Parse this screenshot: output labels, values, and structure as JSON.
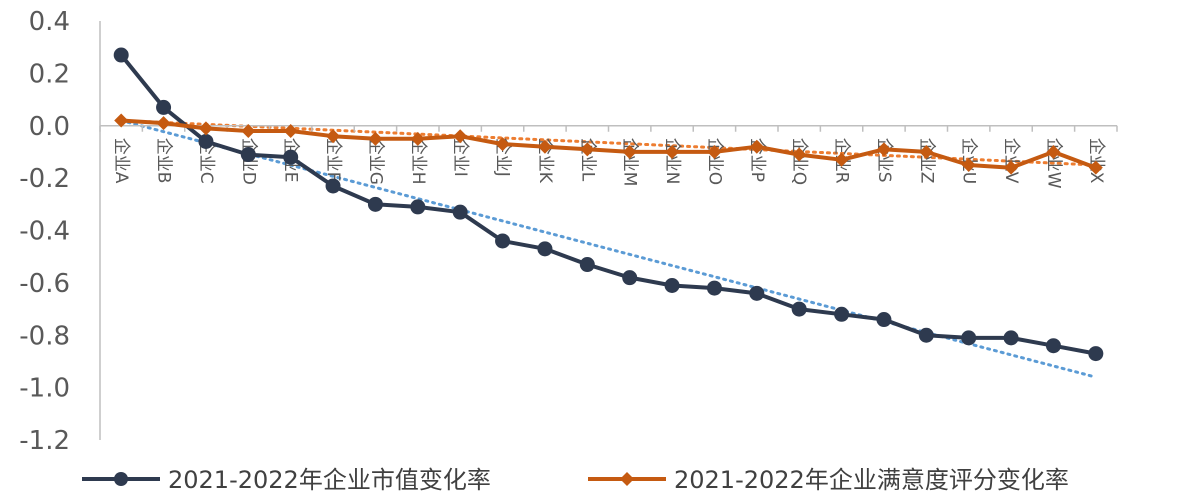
{
  "chart_data": {
    "type": "line",
    "categories": [
      "企业A",
      "企业B",
      "企业C",
      "企业D",
      "企业E",
      "企业F",
      "企业G",
      "企业H",
      "企业I",
      "企业J",
      "企业K",
      "企业L",
      "企业M",
      "企业N",
      "企业O",
      "企业P",
      "企业Q",
      "企业R",
      "企业S",
      "企业Z",
      "企业U",
      "企业V",
      "企业W",
      "企业X"
    ],
    "ylim": [
      -1.2,
      0.4
    ],
    "yticks": [
      0.4,
      0.2,
      0.0,
      -0.2,
      -0.4,
      -0.6,
      -0.8,
      -1.0,
      -1.2
    ],
    "ytick_labels": [
      "0.4",
      "0.2",
      "0.0",
      "-0.2",
      "-0.4",
      "-0.6",
      "-0.8",
      "-1.0",
      "-1.2"
    ],
    "grid": false,
    "legend_position": "bottom",
    "series": [
      {
        "name": "2021-2022年企业市值变化率",
        "color": "#2E3A4F",
        "marker": "circle",
        "values": [
          0.27,
          0.07,
          -0.06,
          -0.11,
          -0.12,
          -0.23,
          -0.3,
          -0.31,
          -0.33,
          -0.44,
          -0.47,
          -0.53,
          -0.58,
          -0.61,
          -0.62,
          -0.64,
          -0.7,
          -0.72,
          -0.74,
          -0.8,
          -0.81,
          -0.81,
          -0.84,
          -0.87
        ],
        "trendline": {
          "color": "#5B9BD5",
          "start": 0.02,
          "end": -0.96
        }
      },
      {
        "name": "2021-2022年企业满意度评分变化率",
        "color": "#C55A11",
        "marker": "diamond",
        "values": [
          0.02,
          0.01,
          -0.01,
          -0.02,
          -0.02,
          -0.04,
          -0.05,
          -0.05,
          -0.04,
          -0.07,
          -0.08,
          -0.09,
          -0.1,
          -0.1,
          -0.1,
          -0.08,
          -0.11,
          -0.13,
          -0.09,
          -0.1,
          -0.15,
          -0.16,
          -0.1,
          -0.16
        ],
        "trendline": {
          "color": "#ED7D31",
          "start": 0.02,
          "end": -0.15
        }
      }
    ]
  }
}
